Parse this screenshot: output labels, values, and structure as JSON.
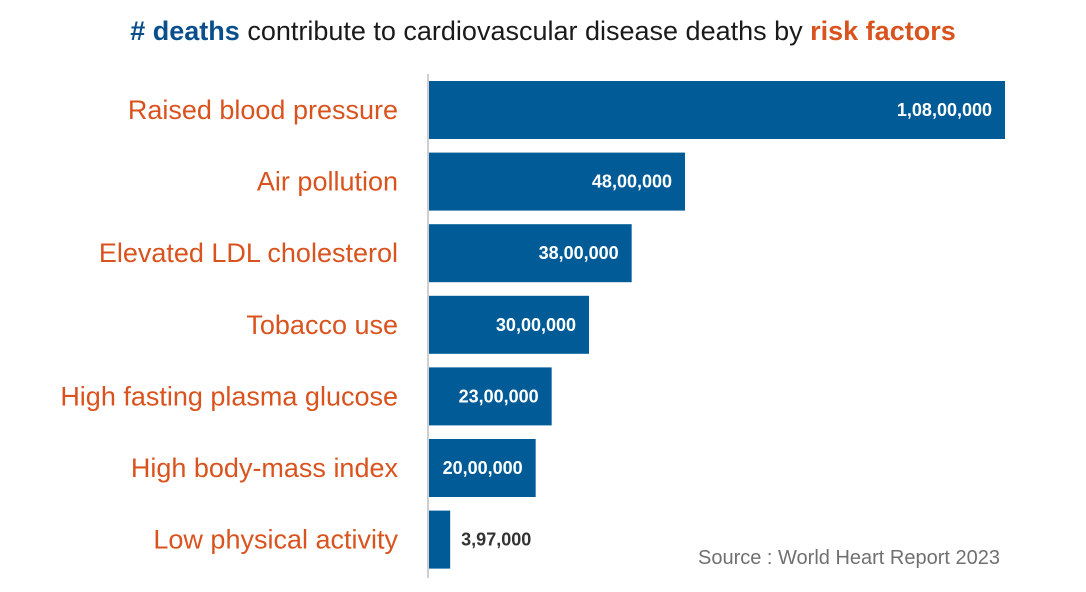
{
  "title": {
    "part_a": "# deaths",
    "part_b": " contribute to cardiovascular disease deaths by ",
    "part_c": "risk factors"
  },
  "colors": {
    "bar": "#005b96",
    "category_label": "#d9531e",
    "title_highlight": "#0a4f8c",
    "title_accent": "#d9531e",
    "inside_label": "#ffffff",
    "outside_label": "#333333",
    "axis": "#bfbfbf"
  },
  "source": "Source : World Heart Report 2023",
  "chart_data": {
    "type": "bar",
    "orientation": "horizontal",
    "categories": [
      "Raised blood pressure",
      "Air pollution",
      "Elevated LDL cholesterol",
      "Tobacco use",
      "High fasting plasma glucose",
      "High body-mass index",
      "Low physical activity"
    ],
    "values": [
      10800000,
      4800000,
      3800000,
      3000000,
      2300000,
      2000000,
      397000
    ],
    "value_labels": [
      "1,08,00,000",
      "48,00,000",
      "38,00,000",
      "30,00,000",
      "23,00,000",
      "20,00,000",
      "3,97,000"
    ],
    "xlim": [
      0,
      10800000
    ],
    "grid": false,
    "legend": "none"
  }
}
